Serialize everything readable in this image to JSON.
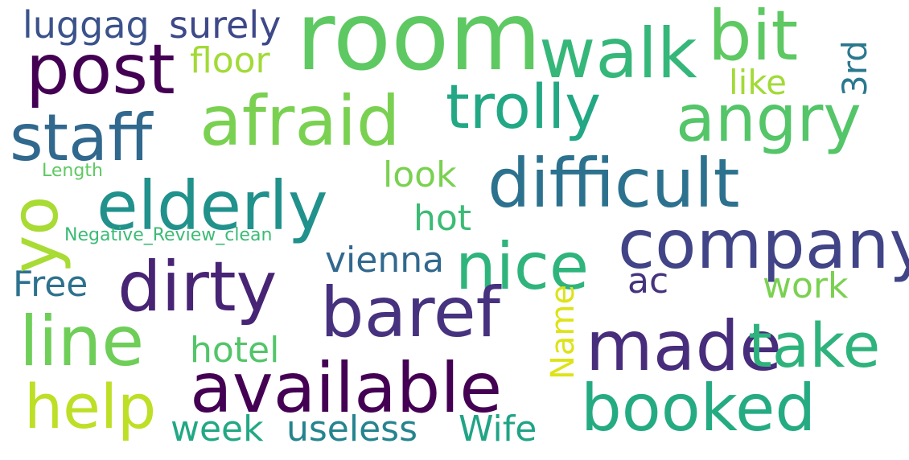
{
  "words": [
    {
      "text": "room",
      "color": "#5ec962",
      "orientation": "horizontal"
    },
    {
      "text": "post",
      "color": "#440154",
      "orientation": "horizontal"
    },
    {
      "text": "afraid",
      "color": "#7ad151",
      "orientation": "horizontal"
    },
    {
      "text": "walk",
      "color": "#35b779",
      "orientation": "horizontal"
    },
    {
      "text": "bit",
      "color": "#5ec962",
      "orientation": "horizontal"
    },
    {
      "text": "trolly",
      "color": "#22a884",
      "orientation": "horizontal"
    },
    {
      "text": "angry",
      "color": "#54c568",
      "orientation": "horizontal"
    },
    {
      "text": "staff",
      "color": "#31688e",
      "orientation": "horizontal"
    },
    {
      "text": "elderly",
      "color": "#21918c",
      "orientation": "horizontal"
    },
    {
      "text": "difficult",
      "color": "#2c728e",
      "orientation": "horizontal"
    },
    {
      "text": "company",
      "color": "#414487",
      "orientation": "horizontal"
    },
    {
      "text": "nice",
      "color": "#2fb47c",
      "orientation": "horizontal"
    },
    {
      "text": "dirty",
      "color": "#482475",
      "orientation": "horizontal"
    },
    {
      "text": "baref",
      "color": "#46327e",
      "orientation": "horizontal"
    },
    {
      "text": "line",
      "color": "#6ece58",
      "orientation": "horizontal"
    },
    {
      "text": "made",
      "color": "#472d7b",
      "orientation": "horizontal"
    },
    {
      "text": "take",
      "color": "#2eb37c",
      "orientation": "horizontal"
    },
    {
      "text": "available",
      "color": "#440154",
      "orientation": "horizontal"
    },
    {
      "text": "help",
      "color": "#bddf26",
      "orientation": "horizontal"
    },
    {
      "text": "booked",
      "color": "#25ab82",
      "orientation": "horizontal"
    },
    {
      "text": "luggag",
      "color": "#3b528b",
      "orientation": "horizontal"
    },
    {
      "text": "surely",
      "color": "#3e4989",
      "orientation": "horizontal"
    },
    {
      "text": "floor",
      "color": "#a2da37",
      "orientation": "horizontal"
    },
    {
      "text": "like",
      "color": "#a2da37",
      "orientation": "horizontal"
    },
    {
      "text": "3rd",
      "color": "#2a788e",
      "orientation": "vertical"
    },
    {
      "text": "look",
      "color": "#7ad151",
      "orientation": "horizontal"
    },
    {
      "text": "hot",
      "color": "#3bbb75",
      "orientation": "horizontal"
    },
    {
      "text": "vienna",
      "color": "#31688e",
      "orientation": "horizontal"
    },
    {
      "text": "ac",
      "color": "#46337e",
      "orientation": "horizontal"
    },
    {
      "text": "work",
      "color": "#7ad151",
      "orientation": "horizontal"
    },
    {
      "text": "Free",
      "color": "#2c728e",
      "orientation": "horizontal"
    },
    {
      "text": "hotel",
      "color": "#52c569",
      "orientation": "horizontal"
    },
    {
      "text": "Name",
      "color": "#dde318",
      "orientation": "vertical"
    },
    {
      "text": "week",
      "color": "#22a884",
      "orientation": "horizontal"
    },
    {
      "text": "useless",
      "color": "#25848e",
      "orientation": "horizontal"
    },
    {
      "text": "Wife",
      "color": "#20a486",
      "orientation": "horizontal"
    },
    {
      "text": "yo",
      "color": "#a8db34",
      "orientation": "vertical"
    },
    {
      "text": "Length",
      "color": "#5ec962",
      "orientation": "horizontal"
    },
    {
      "text": "Negative_Review_clean",
      "color": "#3bbb75",
      "orientation": "horizontal"
    }
  ]
}
